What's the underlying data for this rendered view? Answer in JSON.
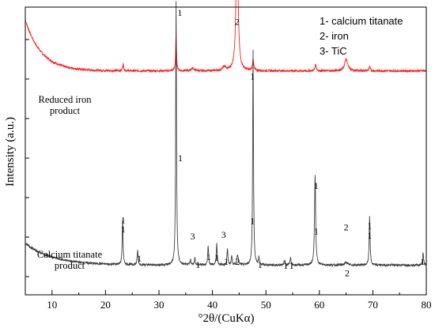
{
  "chart_data": {
    "type": "line",
    "title": "",
    "xlabel": "°2θ/(CuKα)",
    "ylabel": "Intensity (a.u.)",
    "xlim": [
      5,
      80
    ],
    "xticks": [
      10,
      20,
      30,
      40,
      50,
      60,
      70,
      80
    ],
    "grid": false,
    "legend": {
      "placement": "top-right",
      "entries": [
        "1- calcium titanate",
        "2- iron",
        "3- TiC"
      ]
    },
    "series": [
      {
        "name": "Reduced iron product",
        "color": "#ff2020",
        "low_angle_background": {
          "amplitude": 0.28,
          "decay_deg": 3.0
        },
        "baseline": 0.21,
        "peaks": [
          {
            "x": 23.3,
            "height": 0.04,
            "width": 0.12
          },
          {
            "x": 33.2,
            "height": 0.2,
            "width": 0.1
          },
          {
            "x": 36.3,
            "height": 0.015,
            "width": 0.3
          },
          {
            "x": 42.2,
            "height": 0.02,
            "width": 0.35
          },
          {
            "x": 44.6,
            "height": 0.78,
            "width": 0.22
          },
          {
            "x": 47.6,
            "height": 0.07,
            "width": 0.12
          },
          {
            "x": 59.3,
            "height": 0.035,
            "width": 0.15
          },
          {
            "x": 65.0,
            "height": 0.065,
            "width": 0.35
          },
          {
            "x": 69.4,
            "height": 0.02,
            "width": 0.15
          }
        ]
      },
      {
        "name": "Calcium titanate product",
        "color": "#404040",
        "low_angle_background": {
          "amplitude": 0.12,
          "decay_deg": 5.0
        },
        "baseline": 0.02,
        "peaks": [
          {
            "x": 23.2,
            "height": 0.24,
            "width": 0.1
          },
          {
            "x": 26.0,
            "height": 0.08,
            "width": 0.1
          },
          {
            "x": 33.2,
            "height": 1.45,
            "width": 0.09
          },
          {
            "x": 35.9,
            "height": 0.03,
            "width": 0.1
          },
          {
            "x": 36.7,
            "height": 0.04,
            "width": 0.1
          },
          {
            "x": 39.2,
            "height": 0.11,
            "width": 0.1
          },
          {
            "x": 40.8,
            "height": 0.12,
            "width": 0.1
          },
          {
            "x": 42.8,
            "height": 0.09,
            "width": 0.1
          },
          {
            "x": 43.6,
            "height": 0.05,
            "width": 0.1
          },
          {
            "x": 44.7,
            "height": 0.06,
            "width": 0.15
          },
          {
            "x": 47.6,
            "height": 1.18,
            "width": 0.09
          },
          {
            "x": 48.7,
            "height": 0.04,
            "width": 0.1
          },
          {
            "x": 53.5,
            "height": 0.03,
            "width": 0.1
          },
          {
            "x": 54.6,
            "height": 0.04,
            "width": 0.1
          },
          {
            "x": 59.2,
            "height": 0.5,
            "width": 0.12
          },
          {
            "x": 65.0,
            "height": 0.015,
            "width": 0.3
          },
          {
            "x": 69.4,
            "height": 0.27,
            "width": 0.1
          },
          {
            "x": 79.4,
            "height": 0.07,
            "width": 0.1
          }
        ]
      }
    ],
    "sample_labels": [
      {
        "lines": [
          "Reduced iron",
          "product"
        ],
        "series": "Reduced iron product"
      },
      {
        "lines": [
          "Calcium titanate",
          "product"
        ],
        "series": "Calcium titanate product"
      }
    ],
    "peak_labels": [
      {
        "text": "1",
        "x": 33.9,
        "y": 1.52
      },
      {
        "text": "2",
        "x": 44.6,
        "y": 1.47
      },
      {
        "text": "1",
        "x": 23.3,
        "y": 0.33
      },
      {
        "text": "1",
        "x": 34.0,
        "y": 0.72
      },
      {
        "text": "3",
        "x": 36.3,
        "y": 0.29
      },
      {
        "text": "3",
        "x": 42.1,
        "y": 0.3
      },
      {
        "text": "1",
        "x": 47.5,
        "y": 0.375
      },
      {
        "text": "1",
        "x": 59.4,
        "y": 0.32
      },
      {
        "text": "2",
        "x": 65.0,
        "y": 0.34
      },
      {
        "text": "1",
        "x": 69.4,
        "y": 0.295
      },
      {
        "text": "1",
        "x": 23.3,
        "y": 0.38
      },
      {
        "text": "1",
        "x": 26.3,
        "y": 0.17
      },
      {
        "text": "1",
        "x": 47.5,
        "y": 1.17
      },
      {
        "text": "1",
        "x": 37.3,
        "y": 0.135
      },
      {
        "text": "1",
        "x": 39.3,
        "y": 0.178
      },
      {
        "text": "1",
        "x": 40.8,
        "y": 0.173
      },
      {
        "text": "1",
        "x": 42.6,
        "y": 0.152
      },
      {
        "text": "2",
        "x": 44.7,
        "y": 0.153
      },
      {
        "text": "1",
        "x": 48.9,
        "y": 0.135
      },
      {
        "text": "1",
        "x": 53.7,
        "y": 0.13
      },
      {
        "text": "1",
        "x": 54.8,
        "y": 0.13
      },
      {
        "text": "1",
        "x": 59.4,
        "y": 0.57
      },
      {
        "text": "2",
        "x": 65.2,
        "y": 0.09
      },
      {
        "text": "1",
        "x": 69.4,
        "y": 0.35
      },
      {
        "text": "1",
        "x": 79.3,
        "y": 0.152
      }
    ]
  }
}
